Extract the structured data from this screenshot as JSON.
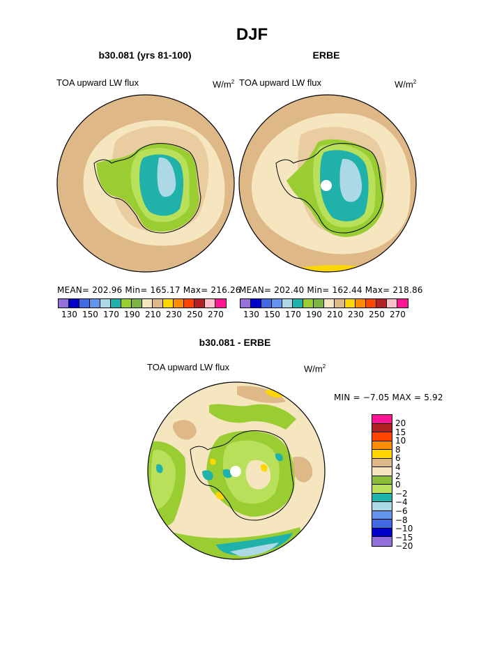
{
  "title": "DJF",
  "palette_abs": [
    "#9370db",
    "#0000cd",
    "#4169e1",
    "#6495ed",
    "#add8e6",
    "#20b2aa",
    "#9acd32",
    "#7cb342",
    "#f5e6c0",
    "#deb887",
    "#ffd700",
    "#ff8c00",
    "#ff4500",
    "#b22222",
    "#ffc0cb",
    "#ff1493"
  ],
  "palette_diff": [
    "#ff1493",
    "#b22222",
    "#ff4500",
    "#ff8c00",
    "#ffd700",
    "#deb887",
    "#f5e6c0",
    "#8bbf3a",
    "#b8e05a",
    "#20b2aa",
    "#add8e6",
    "#6495ed",
    "#4169e1",
    "#0000cd",
    "#9370db"
  ],
  "map_colors": {
    "light_tan": "#f5e6c0",
    "tan": "#deb887",
    "yellowgreen": "#9acd32",
    "lightgreen": "#b8e05a",
    "teal": "#20b2aa",
    "lightblue": "#add8e6",
    "yellow": "#ffd700",
    "white": "#ffffff"
  },
  "panel_left": {
    "title": "b30.081 (yrs 81-100)",
    "label": "TOA upward LW flux",
    "unit_base": "W/m",
    "unit_exp": "2",
    "stats": "MEAN= 202.96  Min= 165.17  Max= 216.26",
    "ticks": [
      "130",
      "150",
      "170",
      "190",
      "210",
      "230",
      "250",
      "270"
    ]
  },
  "panel_right": {
    "title": "ERBE",
    "label": "TOA upward LW flux",
    "unit_base": "W/m",
    "unit_exp": "2",
    "stats": "MEAN= 202.40  Min= 162.44  Max= 218.86",
    "ticks": [
      "130",
      "150",
      "170",
      "190",
      "210",
      "230",
      "250",
      "270"
    ]
  },
  "panel_diff": {
    "title": "b30.081 - ERBE",
    "label": "TOA upward LW flux",
    "unit_base": "W/m",
    "unit_exp": "2",
    "stats": "MIN =  −7.05  MAX =   5.92",
    "levels": [
      "20",
      "15",
      "10",
      "8",
      "6",
      "4",
      "2",
      "0",
      "−2",
      "−4",
      "−6",
      "−8",
      "−10",
      "−15",
      "−20"
    ]
  }
}
